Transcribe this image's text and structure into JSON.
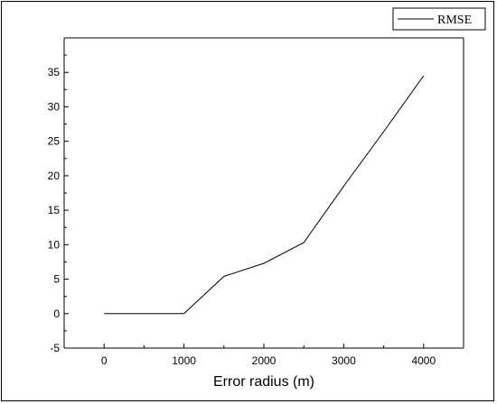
{
  "chart_data": {
    "type": "line",
    "title": "",
    "xlabel": "Error radius  (m)",
    "ylabel": "",
    "xlim": [
      -500,
      4500
    ],
    "ylim": [
      -5,
      40
    ],
    "xticks": [
      0,
      1000,
      2000,
      3000,
      4000
    ],
    "yticks": [
      -5,
      0,
      5,
      10,
      15,
      20,
      25,
      30,
      35
    ],
    "grid": false,
    "legend": "top-right",
    "series": [
      {
        "name": "RMSE",
        "color": "#000000",
        "x": [
          0,
          1000,
          1500,
          2000,
          2500,
          3000,
          3500,
          4000
        ],
        "y": [
          0,
          0,
          5.4,
          7.3,
          10.3,
          18.5,
          26.4,
          34.5
        ]
      }
    ]
  }
}
